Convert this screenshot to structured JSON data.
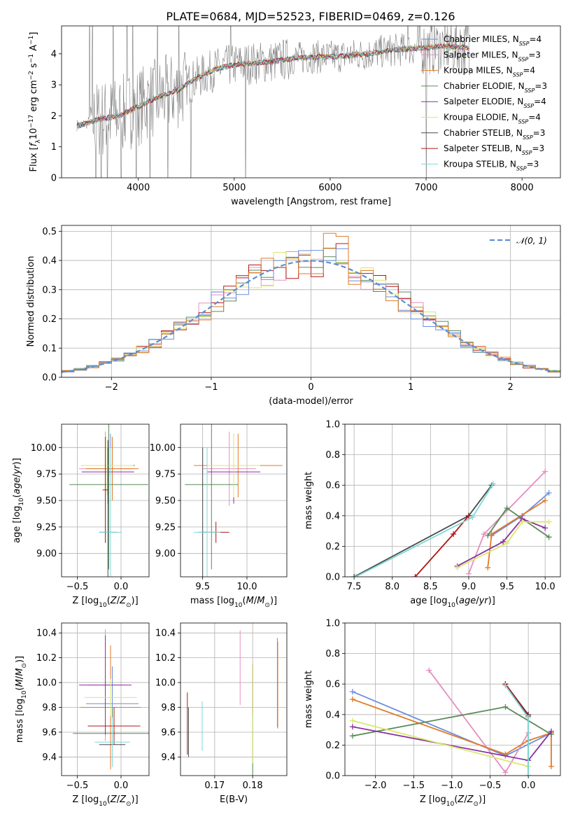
{
  "colors": {
    "chabrier_miles": "#6a8fdc",
    "salpeter_miles": "#e48fc0",
    "kroupa_miles": "#e07a27",
    "chabrier_elodie": "#5a8a5a",
    "salpeter_elodie": "#8b2fa0",
    "kroupa_elodie": "#d9e86a",
    "chabrier_stelib": "#4a4a4a",
    "salpeter_stelib": "#b01818",
    "kroupa_stelib": "#7ed8d8",
    "data": "#808080",
    "gauss": "#5b8fd0"
  },
  "chart_data": [
    {
      "id": "spectrum",
      "type": "line",
      "title": "PLATE=0684, MJD=52523, FIBERID=0469, z=0.126",
      "xlabel": "wavelength [Angstrom, rest frame]",
      "ylabel": "Flux [f_λ 10^-17 erg cm^-2 s^-1 A^-1]",
      "xlim": [
        3200,
        8400
      ],
      "ylim": [
        0,
        4.9
      ],
      "xticks": [
        "4000",
        "5000",
        "6000",
        "7000",
        "8000"
      ],
      "yticks": [
        "0",
        "1",
        "2",
        "3",
        "4"
      ],
      "model_x": [
        3400,
        3600,
        3800,
        4000,
        4200,
        4400,
        4600,
        4800,
        5000,
        5200,
        5400,
        5600,
        5800,
        6000,
        6200,
        6400,
        6600,
        6800,
        7000,
        7200,
        7400
      ],
      "model_y": [
        1.7,
        1.9,
        2.0,
        2.3,
        2.6,
        2.8,
        3.2,
        3.5,
        3.65,
        3.7,
        3.75,
        3.85,
        3.9,
        3.9,
        3.95,
        4.0,
        4.1,
        4.15,
        4.2,
        4.25,
        4.2
      ],
      "legend": [
        {
          "name": "Chabrier MILES, N",
          "sub": "SSP",
          "suffix": "=4"
        },
        {
          "name": "Salpeter MILES, N",
          "sub": "SSP",
          "suffix": "=3"
        },
        {
          "name": "Kroupa MILES, N",
          "sub": "SSP",
          "suffix": "=4"
        },
        {
          "name": "Chabrier ELODIE, N",
          "sub": "SSP",
          "suffix": "=3"
        },
        {
          "name": "Salpeter ELODIE, N",
          "sub": "SSP",
          "suffix": "=4"
        },
        {
          "name": "Kroupa ELODIE, N",
          "sub": "SSP",
          "suffix": "=4"
        },
        {
          "name": "Chabrier STELIB, N",
          "sub": "SSP",
          "suffix": "=3"
        },
        {
          "name": "Salpeter STELIB, N",
          "sub": "SSP",
          "suffix": "=3"
        },
        {
          "name": "Kroupa STELIB, N",
          "sub": "SSP",
          "suffix": "=3"
        }
      ],
      "legend_placement": "top-right"
    },
    {
      "id": "residuals",
      "type": "histogram",
      "xlabel": "(data-model)/error",
      "ylabel": "Normed distribution",
      "xlim": [
        -2.5,
        2.5
      ],
      "ylim": [
        0,
        0.52
      ],
      "xticks": [
        "−2",
        "−1",
        "0",
        "1",
        "2"
      ],
      "yticks": [
        "0.0",
        "0.1",
        "0.2",
        "0.3",
        "0.4",
        "0.5"
      ],
      "grid": true,
      "legend": "𝒩(0, 1)",
      "legend_placement": "top-right"
    },
    {
      "id": "age_vs_Z",
      "type": "errorbar",
      "xlabel": "Z [log10(Z/Z⊙)]",
      "ylabel": "age [log10(age/yr)]",
      "xlim": [
        -0.68,
        0.32
      ],
      "ylim": [
        8.78,
        10.22
      ],
      "xticks": [
        "−0.5",
        "0.0"
      ],
      "yticks": [
        "9.00",
        "9.25",
        "9.50",
        "9.75",
        "10.00"
      ],
      "grid": true
    },
    {
      "id": "age_vs_mass",
      "type": "errorbar",
      "xlabel": "mass [log10(M/M⊙)]",
      "ylabel": "",
      "xlim": [
        9.25,
        10.45
      ],
      "ylim": [
        8.78,
        10.22
      ],
      "xticks": [
        "9.5",
        "10.0"
      ],
      "yticks": [
        "9.00",
        "9.25",
        "9.50",
        "9.75",
        "10.00"
      ],
      "grid": true
    },
    {
      "id": "massweight_vs_age",
      "type": "line",
      "xlabel": "age [log10(age/yr)]",
      "ylabel": "mass weight",
      "xlim": [
        7.38,
        10.2
      ],
      "ylim": [
        0,
        1.0
      ],
      "xticks": [
        "7.5",
        "8.0",
        "8.5",
        "9.0",
        "9.5",
        "10.0"
      ],
      "yticks": [
        "0.0",
        "0.2",
        "0.4",
        "0.6",
        "0.8",
        "1.0"
      ],
      "grid": true,
      "series": [
        {
          "color": "chabrier_miles",
          "x": [
            9.3,
            9.7,
            10.05
          ],
          "y": [
            0.27,
            0.4,
            0.55
          ]
        },
        {
          "color": "salpeter_miles",
          "x": [
            9.0,
            9.2,
            10.0
          ],
          "y": [
            0.02,
            0.28,
            0.69
          ]
        },
        {
          "color": "kroupa_miles",
          "x": [
            9.25,
            9.3,
            10.0
          ],
          "y": [
            0.06,
            0.28,
            0.5
          ]
        },
        {
          "color": "chabrier_elodie",
          "x": [
            9.25,
            9.5,
            10.05
          ],
          "y": [
            0.27,
            0.45,
            0.26
          ]
        },
        {
          "color": "salpeter_elodie",
          "x": [
            8.85,
            9.45,
            9.7,
            10.0
          ],
          "y": [
            0.07,
            0.23,
            0.38,
            0.32
          ]
        },
        {
          "color": "kroupa_elodie",
          "x": [
            8.85,
            9.5,
            9.7,
            10.05
          ],
          "y": [
            0.06,
            0.22,
            0.36,
            0.36
          ]
        },
        {
          "color": "chabrier_stelib",
          "x": [
            7.5,
            9.0,
            9.3
          ],
          "y": [
            0.0,
            0.4,
            0.6
          ]
        },
        {
          "color": "salpeter_stelib",
          "x": [
            8.3,
            8.8,
            9.0
          ],
          "y": [
            0.0,
            0.28,
            0.4
          ]
        },
        {
          "color": "kroupa_stelib",
          "x": [
            7.52,
            9.05,
            9.32
          ],
          "y": [
            0.0,
            0.39,
            0.61
          ]
        }
      ]
    },
    {
      "id": "mass_vs_Z",
      "type": "errorbar",
      "xlabel": "Z [log10(Z/Z⊙)]",
      "ylabel": "mass [log10(M/M⊙)]",
      "xlim": [
        -0.68,
        0.32
      ],
      "ylim": [
        9.25,
        10.48
      ],
      "xticks": [
        "−0.5",
        "0.0"
      ],
      "yticks": [
        "9.4",
        "9.6",
        "9.8",
        "10.0",
        "10.2",
        "10.4"
      ],
      "grid": true
    },
    {
      "id": "mass_vs_ebv",
      "type": "errorbar",
      "xlabel": "E(B-V)",
      "ylabel": "",
      "xlim": [
        0.161,
        0.189
      ],
      "ylim": [
        9.25,
        10.48
      ],
      "xticks": [
        "0.17",
        "0.18"
      ],
      "yticks": [
        "9.4",
        "9.6",
        "9.8",
        "10.0",
        "10.2",
        "10.4"
      ],
      "grid": true
    },
    {
      "id": "massweight_vs_Z",
      "type": "line",
      "xlabel": "Z [log10(Z/Z⊙)]",
      "ylabel": "mass weight",
      "xlim": [
        -2.4,
        0.42
      ],
      "ylim": [
        0,
        1.0
      ],
      "xticks": [
        "−2.0",
        "−1.5",
        "−1.0",
        "−0.5",
        "0.0"
      ],
      "yticks": [
        "0.0",
        "0.2",
        "0.4",
        "0.6",
        "0.8",
        "1.0"
      ],
      "grid": true,
      "series": [
        {
          "color": "chabrier_miles",
          "x": [
            -2.3,
            -0.3,
            0.3
          ],
          "y": [
            0.55,
            0.13,
            0.28
          ]
        },
        {
          "color": "salpeter_miles",
          "x": [
            -1.3,
            -0.3,
            0.0
          ],
          "y": [
            0.69,
            0.02,
            0.28
          ]
        },
        {
          "color": "kroupa_miles",
          "x": [
            -2.3,
            -0.3,
            0.0,
            0.3,
            0.3
          ],
          "y": [
            0.5,
            0.14,
            0.23,
            0.28,
            0.06
          ]
        },
        {
          "color": "chabrier_elodie",
          "x": [
            -2.3,
            -0.3,
            0.3
          ],
          "y": [
            0.26,
            0.45,
            0.27
          ]
        },
        {
          "color": "salpeter_elodie",
          "x": [
            -2.3,
            0.0,
            0.3
          ],
          "y": [
            0.32,
            0.1,
            0.29
          ]
        },
        {
          "color": "kroupa_elodie",
          "x": [
            -2.3,
            0.0
          ],
          "y": [
            0.36,
            0.06
          ]
        },
        {
          "color": "chabrier_stelib",
          "x": [
            -0.3,
            0.0,
            0.0
          ],
          "y": [
            0.6,
            0.4,
            0.0
          ]
        },
        {
          "color": "salpeter_stelib",
          "x": [
            -0.3,
            0.0
          ],
          "y": [
            0.6,
            0.39
          ]
        },
        {
          "color": "kroupa_stelib",
          "x": [
            -0.3,
            0.0,
            0.0
          ],
          "y": [
            0.59,
            0.38,
            0.0
          ]
        }
      ]
    }
  ]
}
